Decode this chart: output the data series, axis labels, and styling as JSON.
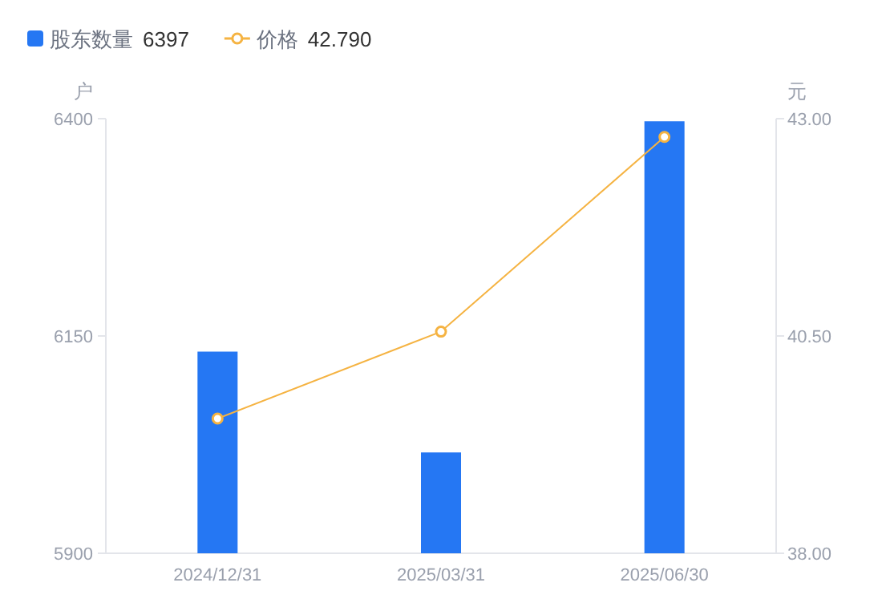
{
  "chart_data": {
    "type": "bar",
    "categories": [
      "2024/12/31",
      "2025/03/31",
      "2025/06/30"
    ],
    "series": [
      {
        "name": "股东数量",
        "color": "#2577f3",
        "values": [
          6132,
          6016,
          6397
        ]
      },
      {
        "name": "价格",
        "type": "line",
        "axis": "y2",
        "color": "#f5b342",
        "marker": "circle",
        "values": [
          39.55,
          40.55,
          42.79
        ]
      }
    ],
    "ylabel": "户",
    "y2label": "元",
    "ylim": [
      5900,
      6400
    ],
    "yticks": [
      5900,
      6150,
      6400
    ],
    "y2lim": [
      38,
      43
    ],
    "y2ticks": [
      {
        "value": 38,
        "label": "38.00"
      },
      {
        "value": 40.5,
        "label": "40.50"
      },
      {
        "value": 43,
        "label": "43.00"
      }
    ],
    "legend": "top left",
    "annotations": [
      "6397",
      "42.790"
    ]
  }
}
